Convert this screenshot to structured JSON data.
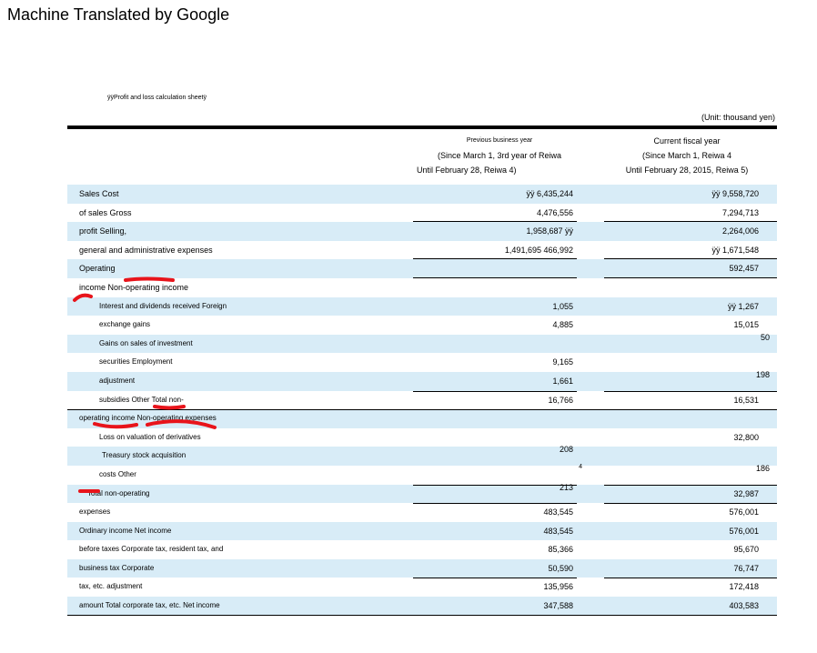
{
  "banner": "Machine Translated by Google",
  "section_title": "ÿÿProfit and loss calculation sheetÿ",
  "unit": "(Unit: thousand yen)",
  "columns": {
    "prev": {
      "line1": "Previous business year",
      "line2": "(Since March 1, 3rd year of Reiwa",
      "line3": "Until February 28, Reiwa 4)"
    },
    "curr": {
      "line1": "Current fiscal year",
      "line2": "(Since March 1, Reiwa 4",
      "line3": "Until February 28, 2015, Reiwa 5)"
    }
  },
  "rows": [
    {
      "label": "Sales Cost",
      "prev": "ÿÿ 6,435,244",
      "curr": "ÿÿ 9,558,720"
    },
    {
      "label": "of sales Gross",
      "prev": "4,476,556",
      "curr": "7,294,713"
    },
    {
      "label": "profit Selling,",
      "prev": "1,958,687 ÿÿ",
      "curr": "2,264,006"
    },
    {
      "label": "general and administrative expenses",
      "prev": "1,491,695 466,992",
      "curr": "ÿÿ 1,671,548"
    },
    {
      "label": "Operating",
      "prev": "",
      "curr": "592,457"
    },
    {
      "label": "income Non-operating income",
      "prev": "",
      "curr": ""
    },
    {
      "label": "Interest and dividends received Foreign",
      "prev": "1,055",
      "curr": "ÿÿ 1,267"
    },
    {
      "label": "exchange gains",
      "prev": "4,885",
      "curr": "15,015"
    },
    {
      "label": "Gains on sales of investment",
      "prev": "",
      "curr": "50"
    },
    {
      "label": "securities Employment",
      "prev": "9,165",
      "curr": ""
    },
    {
      "label": "adjustment",
      "prev": "1,661",
      "curr": "198"
    },
    {
      "label": "subsidies Other Total non-",
      "prev": "16,766",
      "curr": "16,531"
    },
    {
      "label": "operating income Non-operating expenses",
      "prev": "",
      "curr": ""
    },
    {
      "label": "Loss on valuation of derivatives",
      "prev": "",
      "curr": "32,800"
    },
    {
      "label": "Treasury stock acquisition",
      "prev": "208",
      "curr": ""
    },
    {
      "label": "costs Other",
      "prev": "4",
      "curr": "186"
    },
    {
      "label": "Total non-operating",
      "prev": "213",
      "curr": "32,987"
    },
    {
      "label": "expenses",
      "prev": "483,545",
      "curr": "576,001"
    },
    {
      "label": "Ordinary income Net income",
      "prev": "483,545",
      "curr": "576,001"
    },
    {
      "label": "before taxes Corporate tax, resident tax, and",
      "prev": "85,366",
      "curr": "95,670"
    },
    {
      "label": "business tax Corporate",
      "prev": "50,590",
      "curr": "76,747"
    },
    {
      "label": "tax, etc. adjustment",
      "prev": "135,956",
      "curr": "172,418"
    },
    {
      "label": "amount Total corporate tax, etc. Net income",
      "prev": "347,588",
      "curr": "403,583"
    }
  ]
}
